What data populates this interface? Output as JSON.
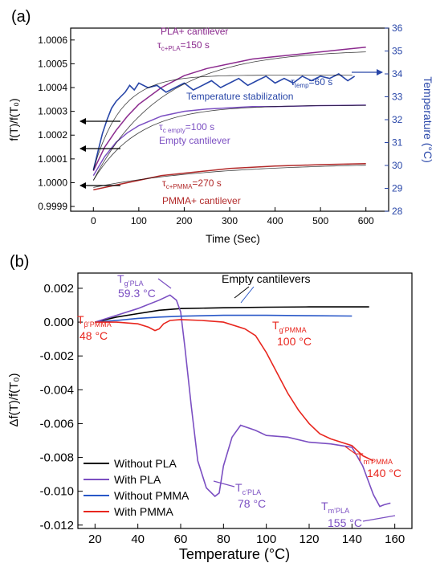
{
  "chart_data": [
    {
      "panel": "(a)",
      "type": "line",
      "xlabel": "Time (Sec)",
      "ylabel": "f(T)/f(T₀)",
      "y2label": "Temperature (°C)",
      "xlim": [
        -50,
        650
      ],
      "ylim": [
        0.99988,
        1.00065
      ],
      "y2lim": [
        28,
        36
      ],
      "xticks": [
        "0",
        "100",
        "200",
        "300",
        "400",
        "500",
        "600"
      ],
      "yticks": [
        "0.9999",
        "1.0000",
        "1.0001",
        "1.0002",
        "1.0003",
        "1.0004",
        "1.0005",
        "1.0006"
      ],
      "y2ticks": [
        "28",
        "29",
        "30",
        "31",
        "32",
        "33",
        "34",
        "35",
        "36"
      ],
      "colors": {
        "pla": "#8b2a8e",
        "empty": "#7b4fc2",
        "pmma": "#b22a2a",
        "temp": "#2846a8",
        "fit": "#000000"
      },
      "series": [
        {
          "key": "pla",
          "axis": "left",
          "x": [
            0,
            25,
            50,
            75,
            100,
            150,
            200,
            250,
            300,
            350,
            400,
            450,
            500,
            550,
            600
          ],
          "y": [
            1.00005,
            1.00015,
            1.00022,
            1.00028,
            1.00033,
            1.0004,
            1.00045,
            1.00048,
            1.0005,
            1.00052,
            1.00053,
            1.00054,
            1.00055,
            1.00056,
            1.00057
          ]
        },
        {
          "key": "empty",
          "axis": "left",
          "x": [
            0,
            25,
            50,
            75,
            100,
            150,
            200,
            250,
            300,
            350,
            400,
            450,
            500,
            550,
            600
          ],
          "y": [
            1.00003,
            1.00011,
            1.00017,
            1.00021,
            1.00024,
            1.00028,
            1.0003,
            1.00031,
            1.000315,
            1.00032,
            1.00032,
            1.000322,
            1.000324,
            1.000325,
            1.000326
          ]
        },
        {
          "key": "pmma",
          "axis": "left",
          "x": [
            0,
            50,
            100,
            150,
            200,
            250,
            300,
            350,
            400,
            450,
            500,
            550,
            600
          ],
          "y": [
            0.99997,
            0.99999,
            1.00001,
            1.00003,
            1.00004,
            1.00005,
            1.00006,
            1.000065,
            1.00007,
            1.000073,
            1.000076,
            1.000078,
            1.00008
          ]
        },
        {
          "key": "temp",
          "axis": "right",
          "x": [
            0,
            10,
            20,
            30,
            40,
            50,
            60,
            70,
            80,
            90,
            100,
            120,
            140,
            160,
            180,
            200,
            220,
            240,
            260,
            280,
            300,
            320,
            340,
            360,
            380,
            400,
            420,
            440,
            460,
            480,
            500,
            520,
            540,
            560,
            575
          ],
          "y": [
            29.8,
            30.6,
            31.4,
            32.0,
            32.5,
            32.8,
            33.0,
            33.2,
            33.5,
            33.3,
            33.6,
            33.4,
            33.5,
            33.2,
            33.4,
            33.6,
            33.3,
            33.5,
            33.7,
            33.4,
            33.6,
            33.8,
            33.5,
            33.7,
            33.9,
            33.6,
            33.8,
            33.6,
            33.9,
            33.7,
            33.9,
            33.8,
            34.0,
            33.7,
            33.9
          ]
        }
      ],
      "fits": [
        {
          "key": "fit_temp",
          "tau": 60,
          "y0": 29.8,
          "yinf": 33.95,
          "axis": "right"
        },
        {
          "key": "fit_pla",
          "tau": 150,
          "y0": 1.00001,
          "yinf": 1.00056,
          "axis": "left"
        },
        {
          "key": "fit_empty",
          "tau": 100,
          "y0": 1.00001,
          "yinf": 1.000326,
          "axis": "left"
        },
        {
          "key": "fit_pmma",
          "tau": 270,
          "y0": 0.99998,
          "yinf": 1.000085,
          "axis": "left"
        }
      ],
      "annotations": {
        "pla_label": "PLA+ cantilever",
        "pla_tau": "τ",
        "pla_tau_sub": "c+PLA",
        "pla_tau_val": "=150 s",
        "temp_tau": "τ",
        "temp_tau_sub": "temp",
        "temp_tau_val": "=60 s",
        "temp_label": "Temperature stabilization",
        "empty_tau": "τ",
        "empty_tau_sub": "c empty",
        "empty_tau_val": "=100 s",
        "empty_label": "Empty cantilever",
        "pmma_tau": "τ",
        "pmma_tau_sub": "c+PMMA",
        "pmma_tau_val": "=270 s",
        "pmma_label": "PMMA+ cantilever"
      }
    },
    {
      "panel": "(b)",
      "type": "line",
      "xlabel": "Temperature (°C)",
      "ylabel": "Δf(T)/f(T₀)",
      "xlim": [
        12,
        168
      ],
      "ylim": [
        -0.0122,
        0.0029
      ],
      "xticks": [
        "20",
        "40",
        "60",
        "80",
        "100",
        "120",
        "140",
        "160"
      ],
      "yticks": [
        "0.002",
        "0.000",
        "-0.002",
        "-0.004",
        "-0.006",
        "-0.008",
        "-0.010",
        "-0.012"
      ],
      "legend": [
        "Without PLA",
        "With PLA",
        "Without PMMA",
        "With PMMA"
      ],
      "legend_placement": "bottom-left",
      "colors": {
        "without_pla": "#000000",
        "with_pla": "#7b4fc2",
        "without_pmma": "#2857c8",
        "with_pmma": "#e8261e"
      },
      "series": [
        {
          "name": "Without PLA",
          "x": [
            20,
            30,
            40,
            50,
            60,
            80,
            100,
            120,
            140,
            148
          ],
          "y": [
            0.0,
            0.0003,
            0.0005,
            0.0007,
            0.0008,
            0.00085,
            0.00088,
            0.0009,
            0.0009,
            0.0009
          ]
        },
        {
          "name": "With PLA",
          "x": [
            20,
            30,
            40,
            50,
            55,
            58,
            60,
            62,
            65,
            68,
            72,
            76,
            78,
            80,
            84,
            88,
            95,
            100,
            110,
            120,
            130,
            140,
            145,
            150,
            153,
            155,
            158
          ],
          "y": [
            0.0,
            0.0004,
            0.0008,
            0.0013,
            0.0016,
            0.0013,
            0.0006,
            -0.0015,
            -0.005,
            -0.0082,
            -0.0098,
            -0.0103,
            -0.0101,
            -0.0085,
            -0.0068,
            -0.0061,
            -0.0064,
            -0.0067,
            -0.0068,
            -0.0071,
            -0.0072,
            -0.0074,
            -0.0085,
            -0.0102,
            -0.0109,
            -0.0108,
            -0.0107
          ]
        },
        {
          "name": "Without PMMA",
          "x": [
            20,
            30,
            40,
            50,
            60,
            80,
            100,
            120,
            140
          ],
          "y": [
            0.0,
            0.0001,
            0.00022,
            0.0003,
            0.00035,
            0.0004,
            0.0004,
            0.00038,
            0.00036
          ]
        },
        {
          "name": "With PMMA",
          "x": [
            20,
            30,
            40,
            45,
            48,
            50,
            52,
            55,
            60,
            70,
            80,
            90,
            95,
            100,
            105,
            110,
            115,
            120,
            125,
            130,
            135,
            140,
            145,
            150
          ],
          "y": [
            0.0,
            0.0,
            -0.0001,
            -0.0003,
            -0.0005,
            -0.0004,
            -0.0001,
            0.0001,
            0.00015,
            0.0001,
            0.0,
            -0.0004,
            -0.0008,
            -0.0018,
            -0.003,
            -0.0042,
            -0.0052,
            -0.006,
            -0.0066,
            -0.0069,
            -0.0071,
            -0.0073,
            -0.0079,
            -0.0082
          ]
        }
      ],
      "annotations": {
        "empty_label": "Empty cantilevers",
        "tg_pla_T": "T",
        "tg_pla_sub": "g’PLA",
        "tg_pla_val": "59.3 °C",
        "tb_pmma_T": "T",
        "tb_pmma_sub": "β’PMMA",
        "tb_pmma_val": "48 °C",
        "tg_pmma_T": "T",
        "tg_pmma_sub": "g’PMMA",
        "tg_pmma_val": "100 °C",
        "tc_pla_T": "T",
        "tc_pla_sub": "c’PLA",
        "tc_pla_val": "78 °C",
        "tm_pmma_T": "T",
        "tm_pmma_sub": "m’PMMA",
        "tm_pmma_val": "140 °C",
        "tm_pla_T": "T",
        "tm_pla_sub": "m’PLA",
        "tm_pla_val": "155 °C"
      }
    }
  ]
}
